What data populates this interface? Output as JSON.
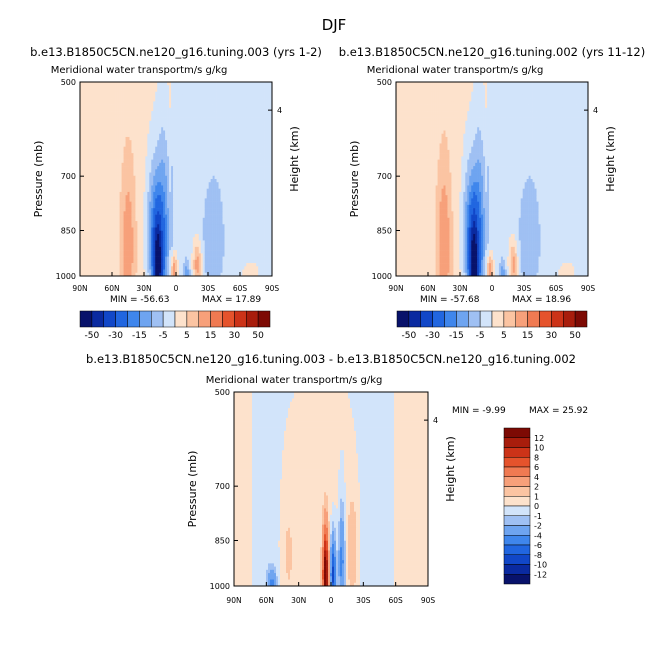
{
  "page_title": "DJF",
  "colors": {
    "palette": [
      "#08126b",
      "#0a2aa0",
      "#1147c8",
      "#2166e0",
      "#3f86ec",
      "#6ea4f0",
      "#9fc0f3",
      "#d2e4fa",
      "#fde2cc",
      "#fbc4a2",
      "#f7a07a",
      "#f07a52",
      "#e5532c",
      "#cc3318",
      "#a81d0c",
      "#7d0a04"
    ],
    "background_fill_left": "#fde6d6",
    "background_fill_right": "#d6e8fb"
  },
  "chart_data": [
    {
      "id": "top-left",
      "type": "heatmap",
      "title": "b.e13.B1850C5CN.ne120_g16.tuning.003 (yrs 1-2)",
      "subtitle_left": "Meridional water transport",
      "subtitle_right": "m/s g/kg",
      "ylabel": "Pressure (mb)",
      "right_label": "Height (km)",
      "x_ticks": [
        "90N",
        "60N",
        "30N",
        "0",
        "30S",
        "60S",
        "90S"
      ],
      "y_ticks": [
        "500",
        "700",
        "850",
        "1000"
      ],
      "height_ticks": [
        "4"
      ],
      "min_label": "MIN = -56.63",
      "max_label": "MAX = 17.89",
      "colorbar_labels": [
        "-50",
        "-30",
        "-15",
        "-5",
        "5",
        "15",
        "30",
        "50"
      ],
      "features": [
        {
          "label": "sh-peak",
          "lat": -17,
          "p": 960,
          "value": -50,
          "wlat": 4,
          "wp": 150
        },
        {
          "label": "s-band",
          "lat": -12,
          "p": 860,
          "value": -20,
          "wlat": 7,
          "wp": 260
        },
        {
          "label": "s-secondary",
          "lat": -22,
          "p": 860,
          "value": -15,
          "wlat": 6,
          "wp": 200
        },
        {
          "label": "n-pos",
          "lat": -45,
          "p": 900,
          "value": 12,
          "wlat": 7,
          "wp": 250
        },
        {
          "label": "eq-pos",
          "lat": -2,
          "p": 980,
          "value": 17,
          "wlat": 3,
          "wp": 60
        },
        {
          "label": "eq-neg",
          "lat": 10,
          "p": 990,
          "value": -10,
          "wlat": 3,
          "wp": 50
        },
        {
          "label": "s-pos",
          "lat": 20,
          "p": 960,
          "value": 15,
          "wlat": 4,
          "wp": 80
        },
        {
          "label": "s-mid-neg",
          "lat": 35,
          "p": 880,
          "value": -8,
          "wlat": 10,
          "wp": 180
        },
        {
          "label": "far-s-pos",
          "lat": 70,
          "p": 990,
          "value": 5,
          "wlat": 8,
          "wp": 40
        }
      ]
    },
    {
      "id": "top-right",
      "type": "heatmap",
      "title": "b.e13.B1850C5CN.ne120_g16.tuning.002 (yrs 11-12)",
      "subtitle_left": "Meridional water transport",
      "subtitle_right": "m/s g/kg",
      "ylabel": "Pressure (mb)",
      "right_label": "Height (km)",
      "x_ticks": [
        "90N",
        "60N",
        "30N",
        "0",
        "30S",
        "60S",
        "90S"
      ],
      "y_ticks": [
        "500",
        "700",
        "850",
        "1000"
      ],
      "height_ticks": [
        "4"
      ],
      "min_label": "MIN = -57.68",
      "max_label": "MAX = 18.96",
      "colorbar_labels": [
        "-50",
        "-30",
        "-15",
        "-5",
        "5",
        "15",
        "30",
        "50"
      ],
      "features": [
        {
          "label": "sh-peak",
          "lat": -17,
          "p": 960,
          "value": -52,
          "wlat": 4,
          "wp": 150
        },
        {
          "label": "s-band",
          "lat": -12,
          "p": 860,
          "value": -20,
          "wlat": 7,
          "wp": 260
        },
        {
          "label": "s-secondary",
          "lat": -22,
          "p": 860,
          "value": -15,
          "wlat": 6,
          "wp": 200
        },
        {
          "label": "n-pos",
          "lat": -45,
          "p": 900,
          "value": 13,
          "wlat": 7,
          "wp": 250
        },
        {
          "label": "eq-pos",
          "lat": -2,
          "p": 980,
          "value": 18,
          "wlat": 3,
          "wp": 60
        },
        {
          "label": "eq-neg",
          "lat": 10,
          "p": 990,
          "value": -10,
          "wlat": 3,
          "wp": 50
        },
        {
          "label": "s-pos",
          "lat": 20,
          "p": 960,
          "value": 14,
          "wlat": 4,
          "wp": 80
        },
        {
          "label": "s-mid-neg",
          "lat": 35,
          "p": 880,
          "value": -8,
          "wlat": 10,
          "wp": 180
        },
        {
          "label": "far-s-pos",
          "lat": 70,
          "p": 990,
          "value": 5,
          "wlat": 8,
          "wp": 40
        }
      ]
    },
    {
      "id": "bottom-diff",
      "type": "heatmap",
      "title": "b.e13.B1850C5CN.ne120_g16.tuning.003 - b.e13.B1850C5CN.ne120_g16.tuning.002",
      "subtitle_left": "Meridional water transport",
      "subtitle_right": "m/s g/kg",
      "ylabel": "Pressure (mb)",
      "right_label": "Height (km)",
      "x_ticks": [
        "90N",
        "60N",
        "30N",
        "0",
        "30S",
        "60S",
        "90S"
      ],
      "y_ticks": [
        "500",
        "700",
        "850",
        "1000"
      ],
      "height_ticks": [
        "4"
      ],
      "min_label": "MIN = -9.99",
      "max_label": "MAX = 25.92",
      "colorbar_labels": [
        "12",
        "10",
        "8",
        "6",
        "4",
        "2",
        "1",
        "0",
        "-1",
        "-2",
        "-4",
        "-6",
        "-8",
        "-10",
        "-12"
      ],
      "features": [
        {
          "label": "eq-pos",
          "lat": -5,
          "p": 960,
          "value": 14,
          "wlat": 2.5,
          "wp": 140
        },
        {
          "label": "eq-neg",
          "lat": 2,
          "p": 960,
          "value": -9,
          "wlat": 2.5,
          "wp": 120
        },
        {
          "label": "s-neg",
          "lat": 10,
          "p": 920,
          "value": -5,
          "wlat": 3,
          "wp": 160
        },
        {
          "label": "n-neg",
          "lat": -55,
          "p": 990,
          "value": -4,
          "wlat": 4,
          "wp": 50
        },
        {
          "label": "s-mid-pos",
          "lat": 20,
          "p": 880,
          "value": 2,
          "wlat": 6,
          "wp": 200
        },
        {
          "label": "n-pos",
          "lat": -40,
          "p": 900,
          "value": 1.5,
          "wlat": 8,
          "wp": 250
        }
      ]
    }
  ]
}
